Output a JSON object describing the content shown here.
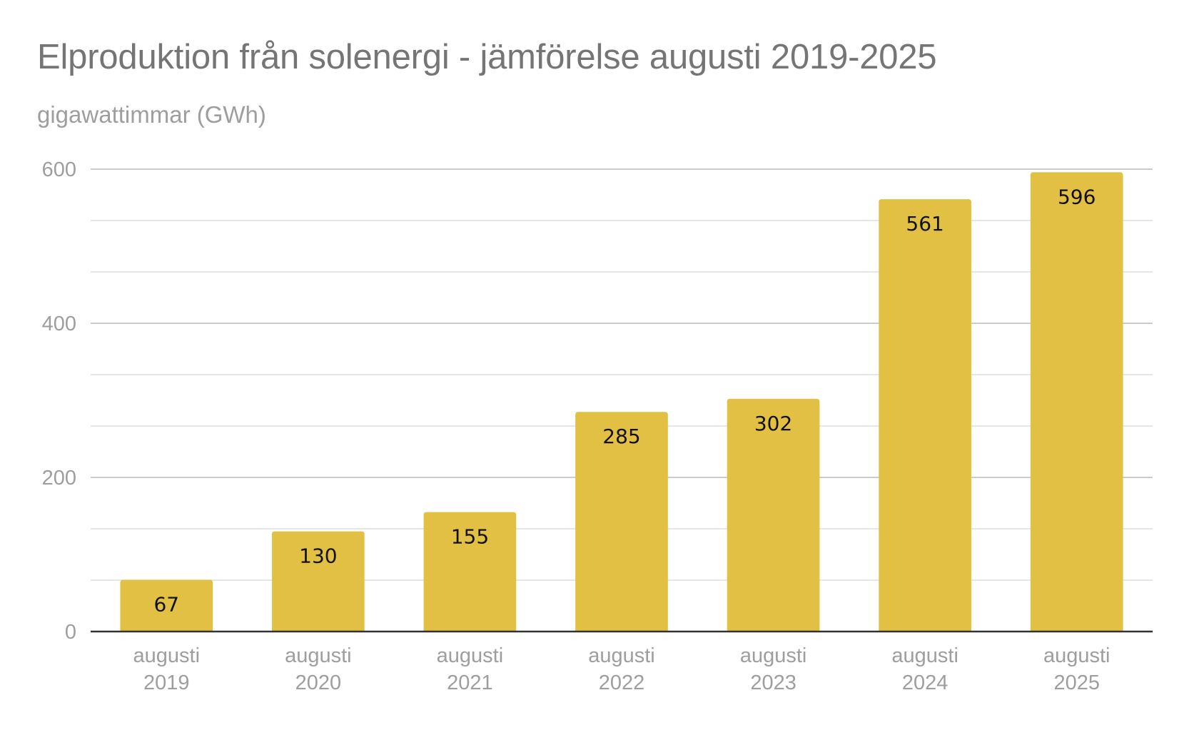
{
  "chart_data": {
    "type": "bar",
    "title": "Elproduktion från solenergi - jämförelse augusti 2019-2025",
    "subtitle": "gigawattimmar (GWh)",
    "xlabel": "",
    "ylabel": "",
    "categories": [
      [
        "augusti",
        "2019"
      ],
      [
        "augusti",
        "2020"
      ],
      [
        "augusti",
        "2021"
      ],
      [
        "augusti",
        "2022"
      ],
      [
        "augusti",
        "2023"
      ],
      [
        "augusti",
        "2024"
      ],
      [
        "augusti",
        "2025"
      ]
    ],
    "values": [
      67,
      130,
      155,
      285,
      302,
      561,
      596
    ],
    "data_labels": [
      "67",
      "130",
      "155",
      "285",
      "302",
      "561",
      "596"
    ],
    "ylim": [
      0,
      600
    ],
    "y_ticks": [
      0,
      200,
      400,
      600
    ],
    "y_tick_labels": [
      "0",
      "200",
      "400",
      "600"
    ],
    "minor_gridlines_per_major": 3,
    "grid": true,
    "legend": "none",
    "colors": {
      "bar": "#e2c044",
      "title": "#757575",
      "subtitle": "#9e9e9e",
      "axis_text": "#9e9e9e",
      "major_grid": "#cccccc",
      "minor_grid": "#e6e6e6",
      "baseline": "#333333",
      "data_label": "#111111"
    }
  }
}
